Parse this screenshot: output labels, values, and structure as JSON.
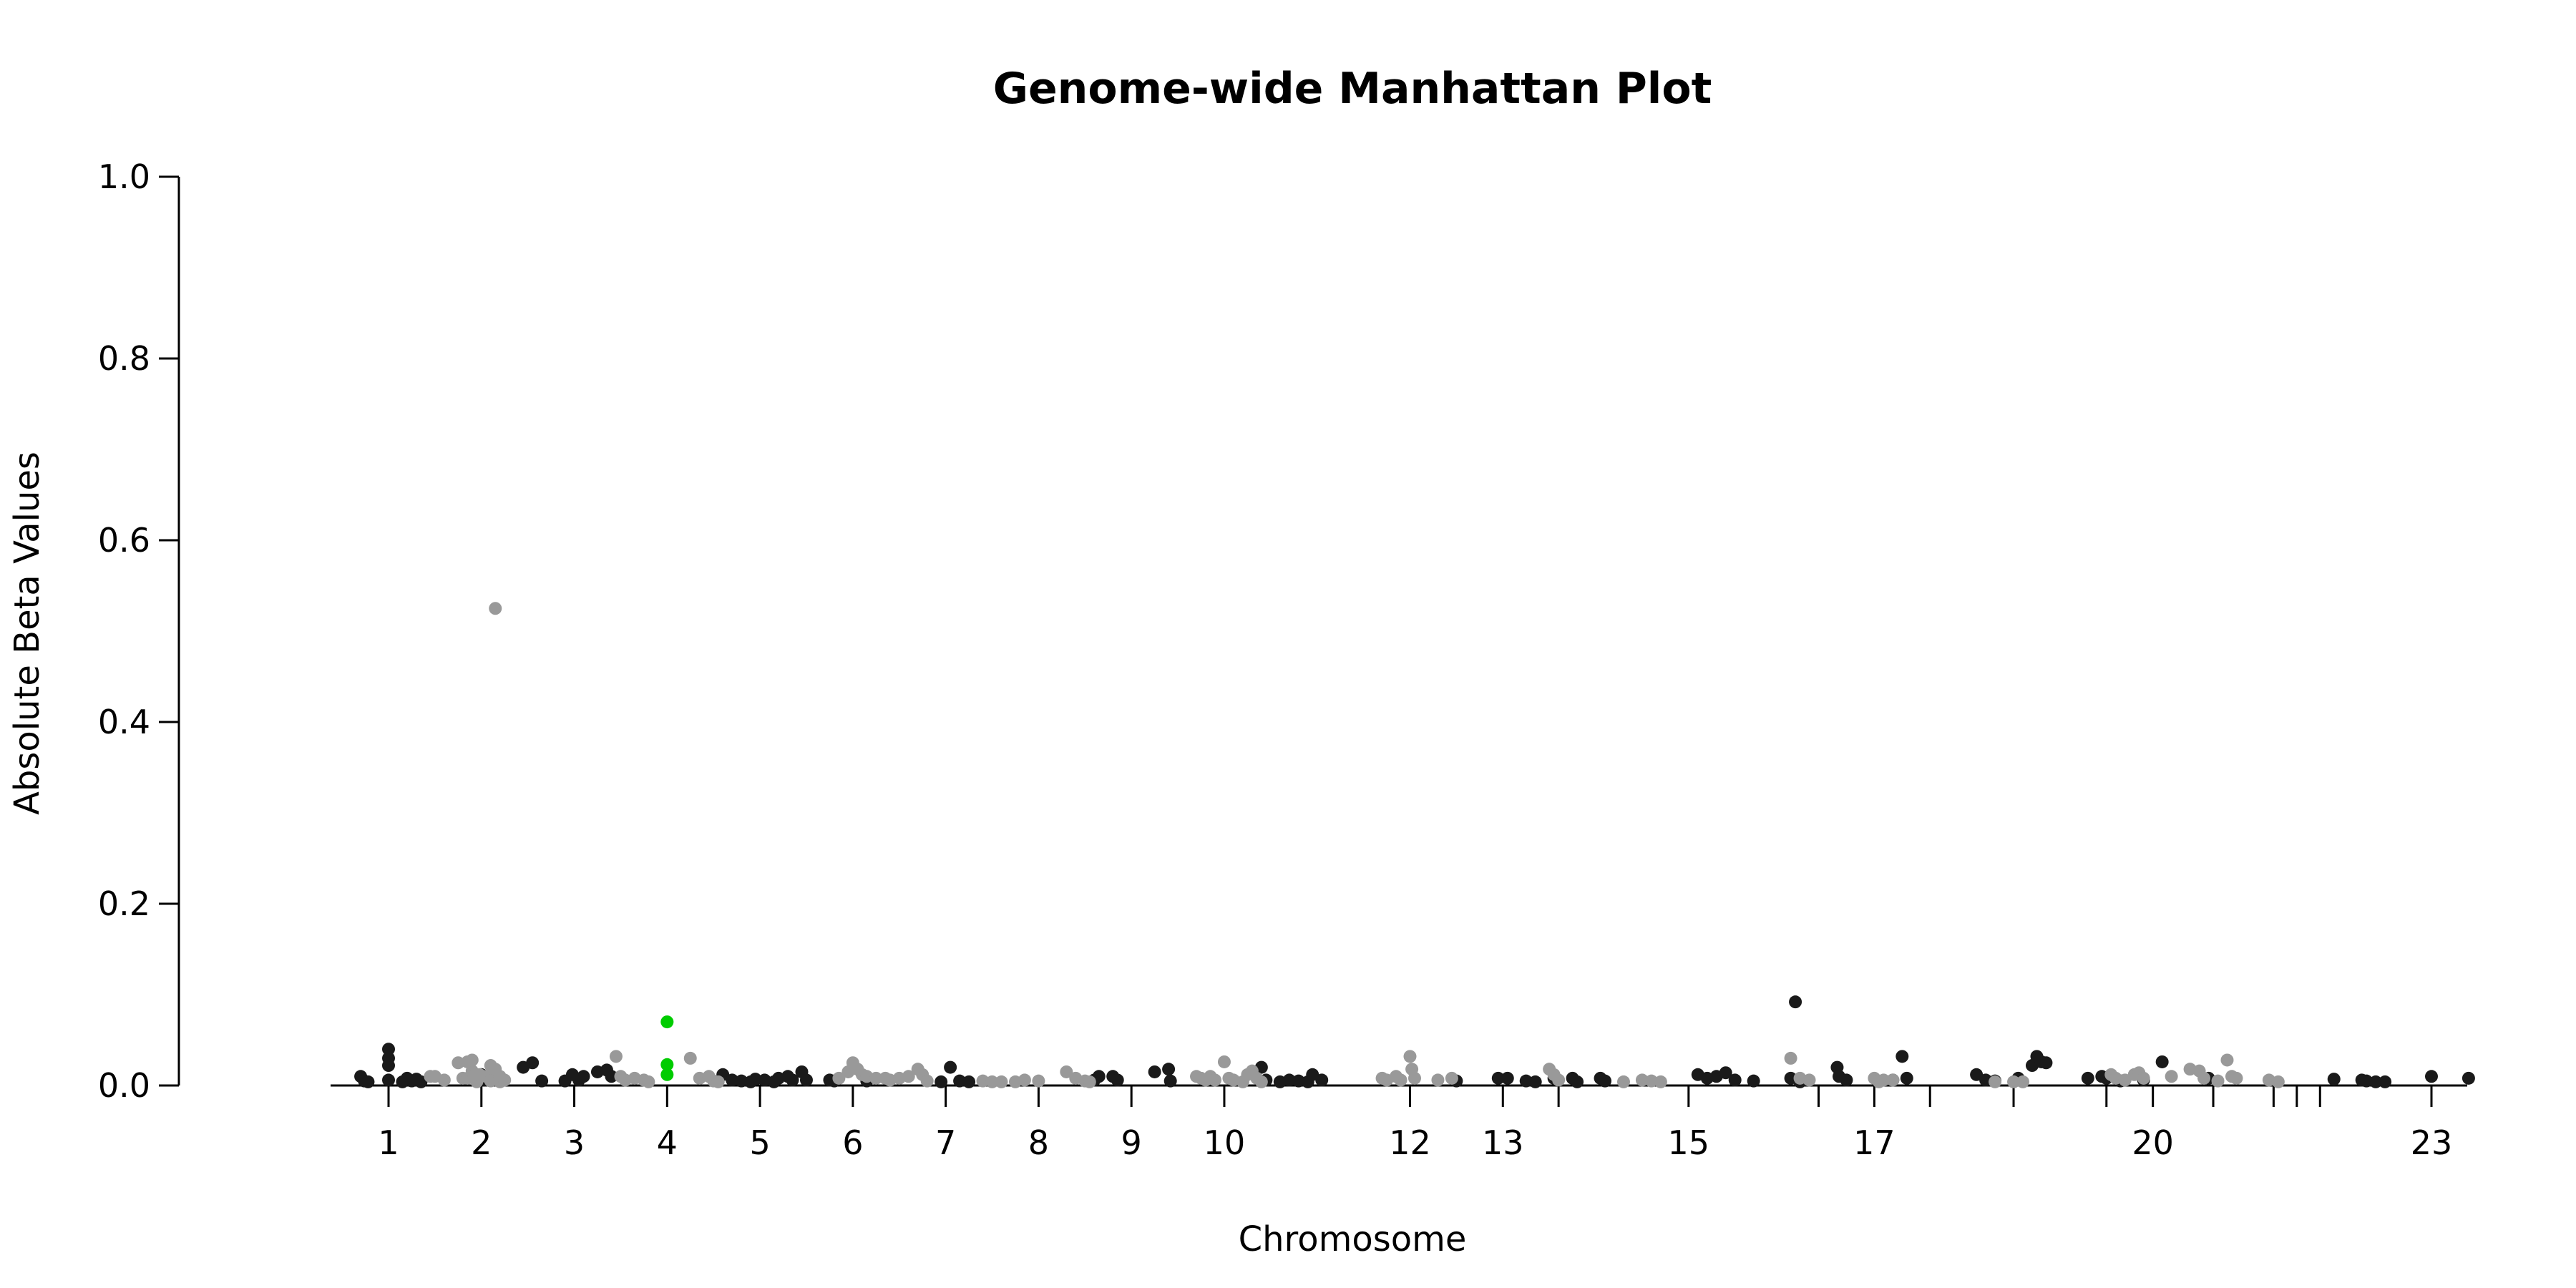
{
  "chart_data": {
    "type": "scatter",
    "title": "Genome-wide Manhattan Plot",
    "xlabel": "Chromosome",
    "ylabel": "Absolute Beta Values",
    "ylim": [
      0,
      1.0
    ],
    "xlim": [
      0.5,
      24.2
    ],
    "y_ticks": [
      "0.0",
      "0.2",
      "0.4",
      "0.6",
      "0.8",
      "1.0"
    ],
    "x_ticks": [
      {
        "label": "1",
        "x": 1
      },
      {
        "label": "2",
        "x": 2
      },
      {
        "label": "3",
        "x": 3
      },
      {
        "label": "4",
        "x": 4
      },
      {
        "label": "5",
        "x": 5
      },
      {
        "label": "6",
        "x": 6
      },
      {
        "label": "7",
        "x": 7
      },
      {
        "label": "8",
        "x": 8
      },
      {
        "label": "9",
        "x": 9
      },
      {
        "label": "10",
        "x": 10
      },
      {
        "label": "12",
        "x": 12
      },
      {
        "label": "13",
        "x": 13
      },
      {
        "label": "15",
        "x": 15
      },
      {
        "label": "17",
        "x": 17
      },
      {
        "label": "20",
        "x": 20
      },
      {
        "label": "23",
        "x": 23
      }
    ],
    "grid": false,
    "colors": {
      "dark": "#1a1a1a",
      "light": "#999999",
      "highlight": "#00cc00"
    },
    "series": [
      {
        "color": "#1a1a1a",
        "points": [
          [
            0.7,
            0.01
          ],
          [
            0.74,
            0.005
          ],
          [
            0.78,
            0.004
          ],
          [
            1.0,
            0.04
          ],
          [
            1.0,
            0.03
          ],
          [
            1.0,
            0.022
          ],
          [
            1.0,
            0.006
          ],
          [
            1.15,
            0.004
          ],
          [
            1.2,
            0.008
          ],
          [
            1.25,
            0.005
          ],
          [
            1.3,
            0.007
          ],
          [
            1.35,
            0.004
          ],
          [
            2.0,
            0.012
          ],
          [
            2.02,
            0.008
          ],
          [
            2.05,
            0.006
          ],
          [
            2.45,
            0.02
          ],
          [
            2.55,
            0.025
          ],
          [
            2.65,
            0.005
          ],
          [
            2.9,
            0.005
          ],
          [
            2.98,
            0.012
          ],
          [
            3.05,
            0.006
          ],
          [
            3.1,
            0.01
          ],
          [
            3.25,
            0.015
          ],
          [
            3.35,
            0.017
          ],
          [
            3.4,
            0.01
          ],
          [
            4.6,
            0.012
          ],
          [
            4.7,
            0.006
          ],
          [
            4.8,
            0.005
          ],
          [
            4.9,
            0.004
          ],
          [
            4.95,
            0.007
          ],
          [
            5.05,
            0.006
          ],
          [
            5.15,
            0.004
          ],
          [
            5.2,
            0.008
          ],
          [
            5.3,
            0.01
          ],
          [
            5.35,
            0.006
          ],
          [
            5.45,
            0.015
          ],
          [
            5.5,
            0.006
          ],
          [
            5.75,
            0.006
          ],
          [
            5.8,
            0.005
          ],
          [
            6.15,
            0.005
          ],
          [
            6.95,
            0.004
          ],
          [
            7.05,
            0.02
          ],
          [
            7.15,
            0.005
          ],
          [
            7.25,
            0.004
          ],
          [
            8.6,
            0.006
          ],
          [
            8.65,
            0.01
          ],
          [
            8.8,
            0.01
          ],
          [
            8.85,
            0.006
          ],
          [
            9.25,
            0.015
          ],
          [
            9.4,
            0.018
          ],
          [
            9.42,
            0.005
          ],
          [
            10.4,
            0.02
          ],
          [
            10.45,
            0.006
          ],
          [
            10.6,
            0.004
          ],
          [
            10.7,
            0.006
          ],
          [
            10.8,
            0.005
          ],
          [
            10.9,
            0.004
          ],
          [
            10.95,
            0.012
          ],
          [
            11.05,
            0.006
          ],
          [
            12.5,
            0.005
          ],
          [
            12.95,
            0.008
          ],
          [
            13.05,
            0.008
          ],
          [
            13.25,
            0.005
          ],
          [
            13.35,
            0.004
          ],
          [
            13.55,
            0.008
          ],
          [
            13.75,
            0.008
          ],
          [
            13.8,
            0.004
          ],
          [
            14.05,
            0.008
          ],
          [
            14.1,
            0.005
          ],
          [
            15.1,
            0.012
          ],
          [
            15.2,
            0.008
          ],
          [
            15.3,
            0.01
          ],
          [
            15.4,
            0.014
          ],
          [
            15.5,
            0.006
          ],
          [
            15.7,
            0.005
          ],
          [
            16.15,
            0.092
          ],
          [
            16.1,
            0.008
          ],
          [
            16.2,
            0.004
          ],
          [
            16.6,
            0.02
          ],
          [
            16.62,
            0.01
          ],
          [
            16.7,
            0.006
          ],
          [
            17.3,
            0.032
          ],
          [
            17.2,
            0.006
          ],
          [
            17.35,
            0.008
          ],
          [
            18.1,
            0.012
          ],
          [
            18.2,
            0.006
          ],
          [
            18.3,
            0.005
          ],
          [
            18.55,
            0.008
          ],
          [
            18.7,
            0.022
          ],
          [
            18.75,
            0.032
          ],
          [
            18.8,
            0.026
          ],
          [
            18.85,
            0.025
          ],
          [
            19.3,
            0.008
          ],
          [
            19.45,
            0.01
          ],
          [
            19.5,
            0.008
          ],
          [
            19.65,
            0.005
          ],
          [
            19.9,
            0.006
          ],
          [
            20.1,
            0.026
          ],
          [
            20.6,
            0.008
          ],
          [
            21.95,
            0.007
          ],
          [
            22.25,
            0.006
          ],
          [
            22.3,
            0.005
          ],
          [
            22.4,
            0.004
          ],
          [
            22.5,
            0.004
          ],
          [
            23.0,
            0.01
          ],
          [
            23.4,
            0.008
          ]
        ]
      },
      {
        "color": "#999999",
        "points": [
          [
            1.45,
            0.01
          ],
          [
            1.5,
            0.01
          ],
          [
            1.6,
            0.006
          ],
          [
            1.75,
            0.025
          ],
          [
            1.8,
            0.008
          ],
          [
            1.85,
            0.008
          ],
          [
            1.9,
            0.016
          ],
          [
            1.95,
            0.004
          ],
          [
            2.05,
            0.01
          ],
          [
            2.1,
            0.01
          ],
          [
            2.2,
            0.004
          ],
          [
            1.85,
            0.026
          ],
          [
            1.92,
            0.01
          ],
          [
            1.95,
            0.006
          ],
          [
            2.1,
            0.005
          ],
          [
            2.15,
            0.525
          ],
          [
            2.1,
            0.022
          ],
          [
            2.15,
            0.018
          ],
          [
            2.2,
            0.01
          ],
          [
            2.25,
            0.006
          ],
          [
            1.9,
            0.028
          ],
          [
            1.98,
            0.012
          ],
          [
            3.45,
            0.032
          ],
          [
            3.5,
            0.01
          ],
          [
            3.55,
            0.006
          ],
          [
            3.65,
            0.008
          ],
          [
            3.75,
            0.006
          ],
          [
            3.8,
            0.004
          ],
          [
            4.25,
            0.03
          ],
          [
            4.35,
            0.008
          ],
          [
            4.45,
            0.01
          ],
          [
            4.5,
            0.005
          ],
          [
            4.55,
            0.004
          ],
          [
            5.85,
            0.008
          ],
          [
            5.95,
            0.015
          ],
          [
            6.0,
            0.025
          ],
          [
            6.05,
            0.018
          ],
          [
            6.1,
            0.012
          ],
          [
            6.15,
            0.01
          ],
          [
            6.25,
            0.008
          ],
          [
            6.35,
            0.008
          ],
          [
            6.4,
            0.006
          ],
          [
            6.5,
            0.008
          ],
          [
            6.6,
            0.01
          ],
          [
            6.7,
            0.018
          ],
          [
            6.75,
            0.012
          ],
          [
            6.8,
            0.005
          ],
          [
            7.4,
            0.005
          ],
          [
            7.5,
            0.004
          ],
          [
            7.6,
            0.004
          ],
          [
            7.75,
            0.004
          ],
          [
            7.85,
            0.006
          ],
          [
            8.0,
            0.005
          ],
          [
            8.3,
            0.015
          ],
          [
            8.4,
            0.008
          ],
          [
            8.5,
            0.005
          ],
          [
            8.55,
            0.004
          ],
          [
            9.7,
            0.01
          ],
          [
            9.75,
            0.008
          ],
          [
            9.8,
            0.006
          ],
          [
            9.85,
            0.01
          ],
          [
            9.9,
            0.006
          ],
          [
            10.0,
            0.026
          ],
          [
            10.05,
            0.008
          ],
          [
            10.1,
            0.006
          ],
          [
            10.2,
            0.004
          ],
          [
            10.25,
            0.012
          ],
          [
            10.3,
            0.016
          ],
          [
            10.35,
            0.008
          ],
          [
            10.4,
            0.004
          ],
          [
            11.7,
            0.008
          ],
          [
            11.75,
            0.006
          ],
          [
            11.85,
            0.01
          ],
          [
            11.9,
            0.006
          ],
          [
            12.0,
            0.032
          ],
          [
            12.02,
            0.018
          ],
          [
            12.05,
            0.008
          ],
          [
            12.3,
            0.006
          ],
          [
            12.45,
            0.008
          ],
          [
            13.5,
            0.018
          ],
          [
            13.55,
            0.012
          ],
          [
            13.6,
            0.006
          ],
          [
            14.3,
            0.004
          ],
          [
            14.5,
            0.006
          ],
          [
            14.6,
            0.005
          ],
          [
            14.7,
            0.004
          ],
          [
            16.1,
            0.03
          ],
          [
            16.2,
            0.008
          ],
          [
            16.3,
            0.006
          ],
          [
            17.0,
            0.008
          ],
          [
            17.05,
            0.004
          ],
          [
            17.1,
            0.006
          ],
          [
            17.2,
            0.006
          ],
          [
            18.3,
            0.004
          ],
          [
            18.5,
            0.004
          ],
          [
            18.6,
            0.004
          ],
          [
            19.55,
            0.012
          ],
          [
            19.6,
            0.008
          ],
          [
            19.7,
            0.006
          ],
          [
            19.8,
            0.012
          ],
          [
            19.85,
            0.014
          ],
          [
            19.9,
            0.008
          ],
          [
            20.2,
            0.01
          ],
          [
            20.4,
            0.018
          ],
          [
            20.5,
            0.016
          ],
          [
            20.55,
            0.008
          ],
          [
            20.7,
            0.005
          ],
          [
            20.8,
            0.028
          ],
          [
            20.85,
            0.01
          ],
          [
            20.9,
            0.008
          ],
          [
            21.25,
            0.006
          ],
          [
            21.35,
            0.004
          ]
        ]
      },
      {
        "color": "#00cc00",
        "points": [
          [
            4.0,
            0.07
          ],
          [
            4.0,
            0.023
          ],
          [
            4.0,
            0.012
          ]
        ]
      }
    ]
  }
}
